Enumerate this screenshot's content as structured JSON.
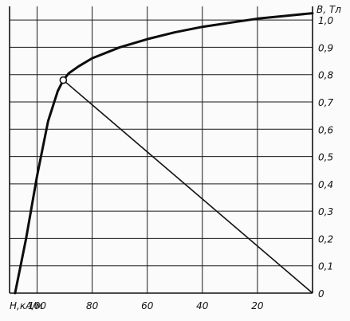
{
  "chart_data": {
    "type": "line",
    "title": "",
    "xlabel": "H,кА/м",
    "ylabel": "B, Tл",
    "x_reversed": true,
    "xlim": [
      0,
      110
    ],
    "ylim": [
      0,
      1.05
    ],
    "x_ticks": [
      100,
      80,
      60,
      40,
      20
    ],
    "x_tick_labels": [
      "100",
      "80",
      "60",
      "40",
      "20"
    ],
    "y_ticks": [
      0,
      0.1,
      0.2,
      0.3,
      0.4,
      0.5,
      0.6,
      0.7,
      0.8,
      0.9,
      1.0
    ],
    "y_tick_labels": [
      "0",
      "0,1",
      "0,2",
      "0,3",
      "0,4",
      "0,5",
      "0,6",
      "0,7",
      "0,8",
      "0,9",
      "1,0"
    ],
    "grid": true,
    "series": [
      {
        "name": "",
        "style": "thick",
        "x": [
          108,
          104,
          100,
          96,
          92.5,
          90.5,
          88.5,
          85,
          80,
          70,
          60,
          50,
          40,
          30,
          20,
          10,
          0
        ],
        "y": [
          0,
          0.2,
          0.43,
          0.63,
          0.74,
          0.78,
          0.805,
          0.83,
          0.86,
          0.9,
          0.93,
          0.955,
          0.975,
          0.99,
          1.005,
          1.015,
          1.025
        ]
      },
      {
        "name": "",
        "style": "thin",
        "x": [
          90.5,
          0
        ],
        "y": [
          0.78,
          0
        ]
      }
    ],
    "points": [
      {
        "x": 90.5,
        "y": 0.78,
        "style": "open-circle"
      }
    ]
  }
}
